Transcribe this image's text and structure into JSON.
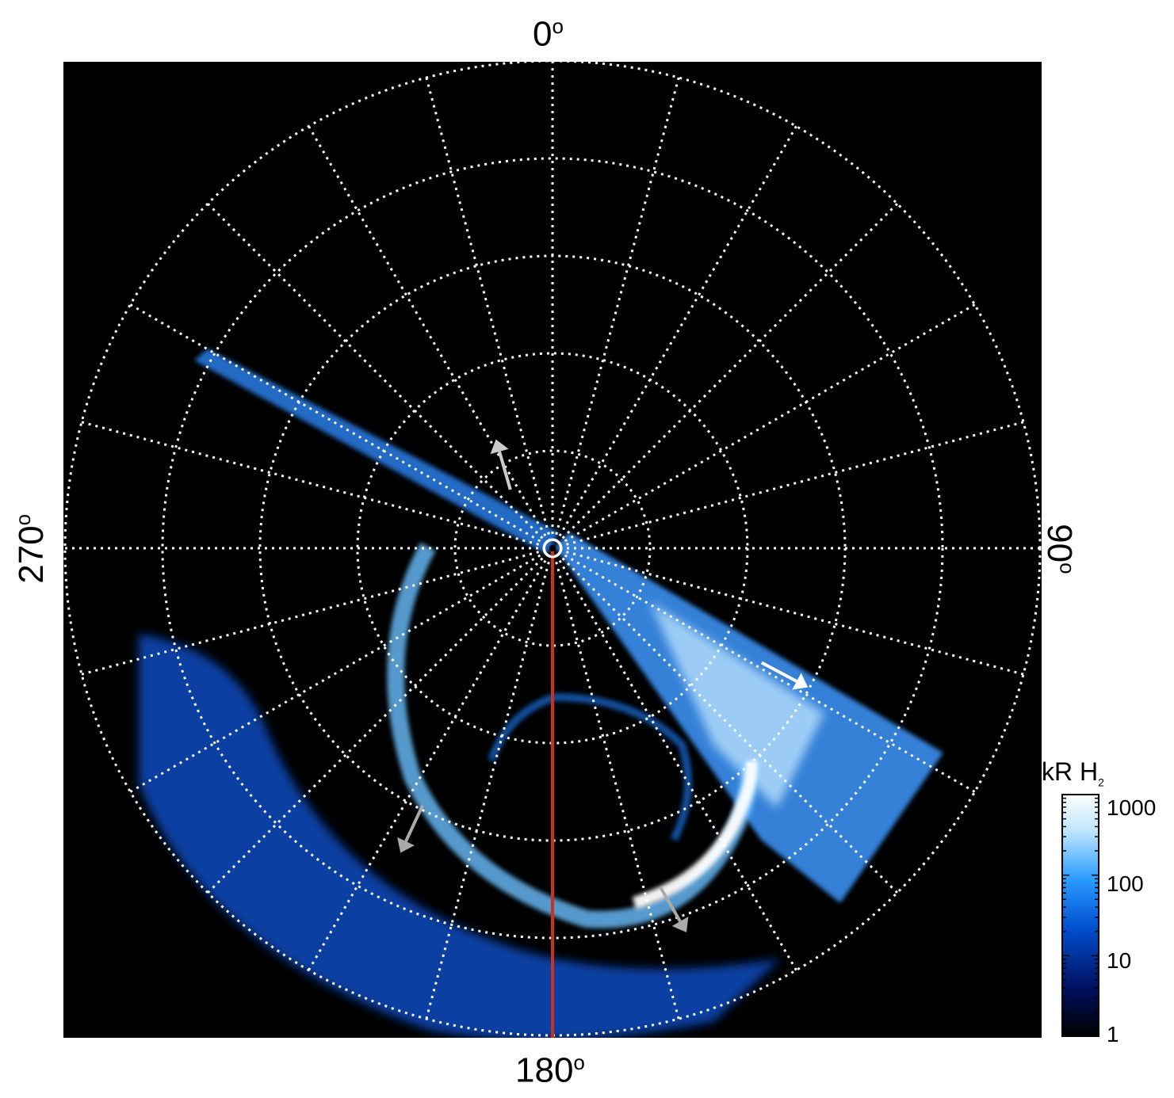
{
  "chart_data": {
    "type": "heatmap",
    "projection": "polar (north-pole azimuthal)",
    "angular_labels": {
      "top": "0",
      "right": "90",
      "bottom": "180",
      "left": "270"
    },
    "degree_symbol": "o",
    "grid": true,
    "grid_style": "dotted white",
    "meridian_step_deg": 15,
    "latitude_circles": 5,
    "meridian_line_red": {
      "longitude": 180
    },
    "colorbar": {
      "label_main": "kR H",
      "label_sub": "2",
      "scale": "log",
      "range": [
        1,
        1000
      ],
      "ticks": [
        "1000",
        "100",
        "10",
        "1"
      ],
      "colors": [
        "#000000",
        "#001060",
        "#0050d0",
        "#2b9cff",
        "#bfe6ff",
        "#ffffff"
      ]
    },
    "arrows": [
      {
        "color": "#cccccc",
        "azimuth_deg": 344
      },
      {
        "color": "#ffffff",
        "azimuth_deg": 118
      },
      {
        "color": "#aaaaaa",
        "azimuth_deg": 205
      },
      {
        "color": "#aaaaaa",
        "azimuth_deg": 150
      }
    ]
  }
}
